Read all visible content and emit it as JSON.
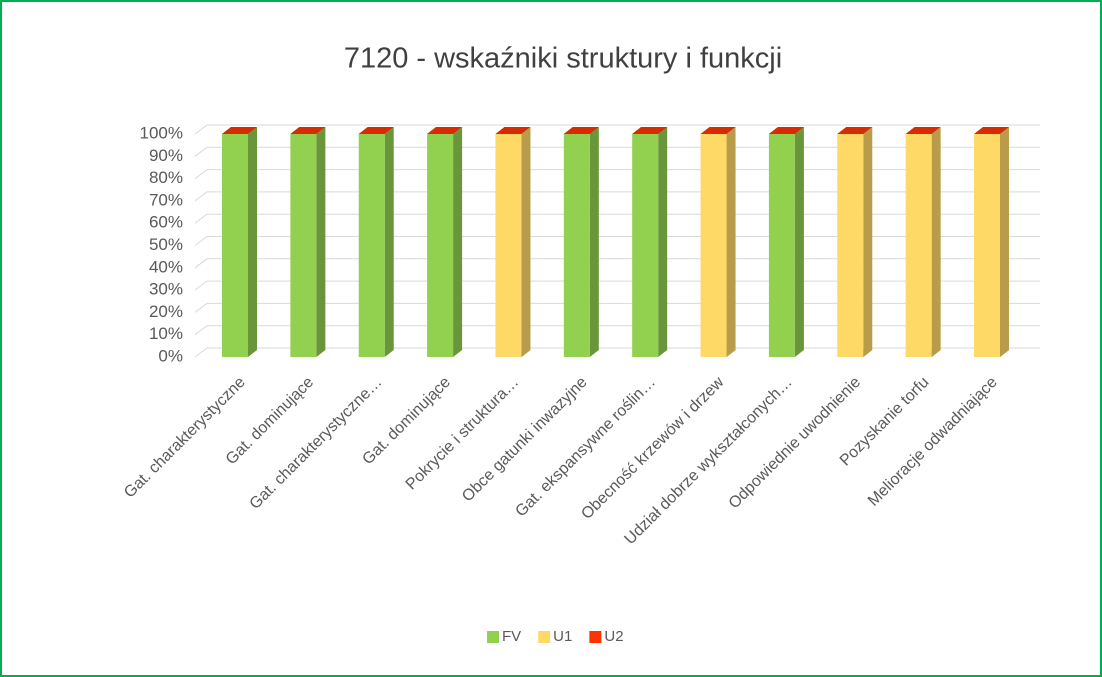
{
  "chart_data": {
    "type": "bar3d_stacked",
    "title": "7120 - wskaźniki struktury i funkcji",
    "categories": [
      "Gat. charakterystyczne",
      "Gat. dominujące",
      "Gat. charakterystyczne…",
      "Gat. dominujące",
      "Pokrycie i struktura…",
      "Obce gatunki inwazyjne",
      "Gat. ekspansywne roślin…",
      "Obecność krzewów i drzew",
      "Udział dobrze wykształconych…",
      "Odpowiednie uwodnienie",
      "Pozyskanie torfu",
      "Melioracje odwadniające"
    ],
    "series": [
      {
        "name": "FV",
        "color": "#92d050",
        "values": [
          100,
          100,
          100,
          100,
          0,
          100,
          100,
          0,
          100,
          0,
          0,
          0
        ]
      },
      {
        "name": "U1",
        "color": "#ffd966",
        "values": [
          0,
          0,
          0,
          0,
          100,
          0,
          0,
          100,
          0,
          100,
          100,
          100
        ]
      },
      {
        "name": "U2",
        "color": "#ff3300",
        "values": [
          0,
          0,
          0,
          0,
          0,
          0,
          0,
          0,
          0,
          0,
          0,
          0
        ]
      }
    ],
    "ylim": [
      0,
      100
    ],
    "yticks": [
      {
        "value": 0,
        "label": "0%"
      },
      {
        "value": 10,
        "label": "10%"
      },
      {
        "value": 20,
        "label": "20%"
      },
      {
        "value": 30,
        "label": "30%"
      },
      {
        "value": 40,
        "label": "40%"
      },
      {
        "value": 50,
        "label": "50%"
      },
      {
        "value": 60,
        "label": "60%"
      },
      {
        "value": 70,
        "label": "70%"
      },
      {
        "value": 80,
        "label": "80%"
      },
      {
        "value": 90,
        "label": "90%"
      },
      {
        "value": 100,
        "label": "100%"
      }
    ],
    "grid": true,
    "legend": "bottom"
  }
}
